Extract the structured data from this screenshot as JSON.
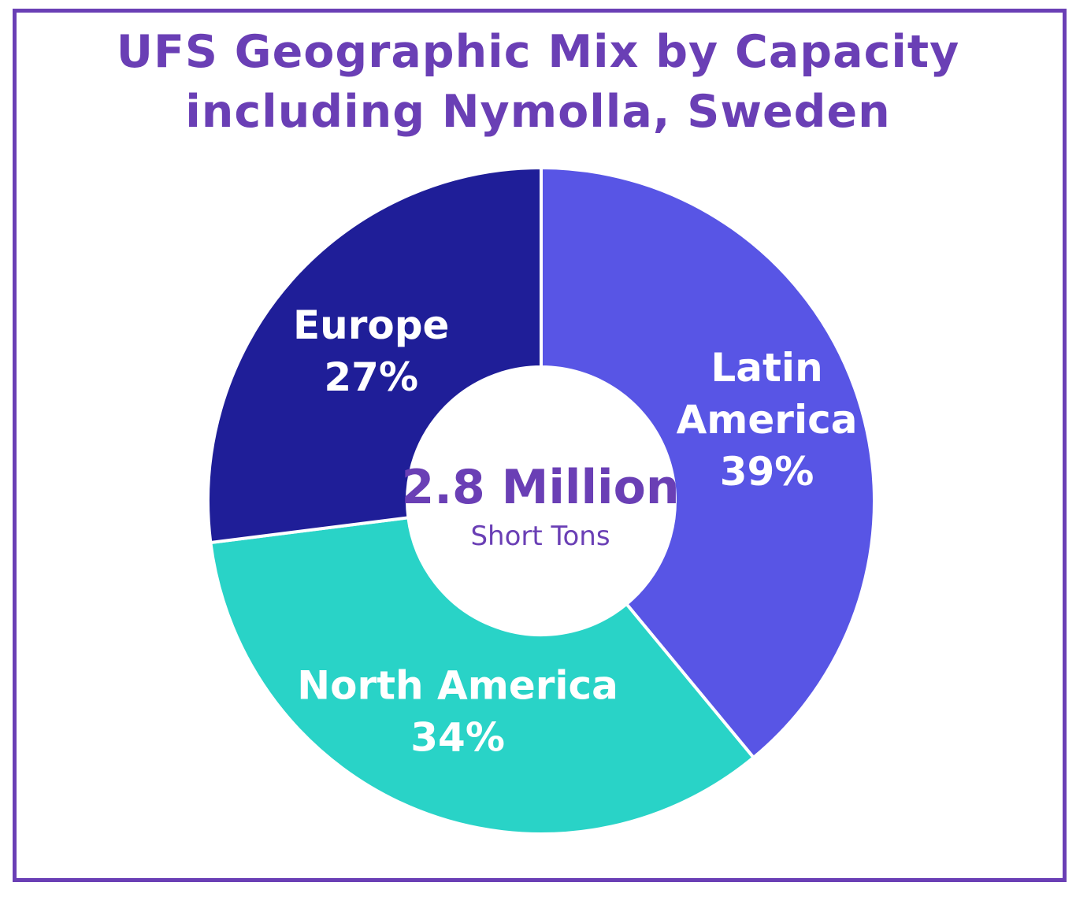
{
  "chart_data": {
    "type": "pie",
    "title": "UFS Geographic Mix by Capacity including Nymolla, Sweden",
    "center_value": "2.8 Million",
    "center_unit": "Short Tons",
    "slices": [
      {
        "label": "Latin America",
        "value": 39,
        "value_label": "39%",
        "color": "#5855e5"
      },
      {
        "label": "North America",
        "value": 34,
        "value_label": "34%",
        "color": "#29d3c7"
      },
      {
        "label": "Europe",
        "value": 27,
        "value_label": "27%",
        "color": "#1f1e98"
      }
    ]
  },
  "colors": {
    "title": "#6a3fb5",
    "border": "#6a3fb5",
    "slice_label": "#ffffff"
  }
}
